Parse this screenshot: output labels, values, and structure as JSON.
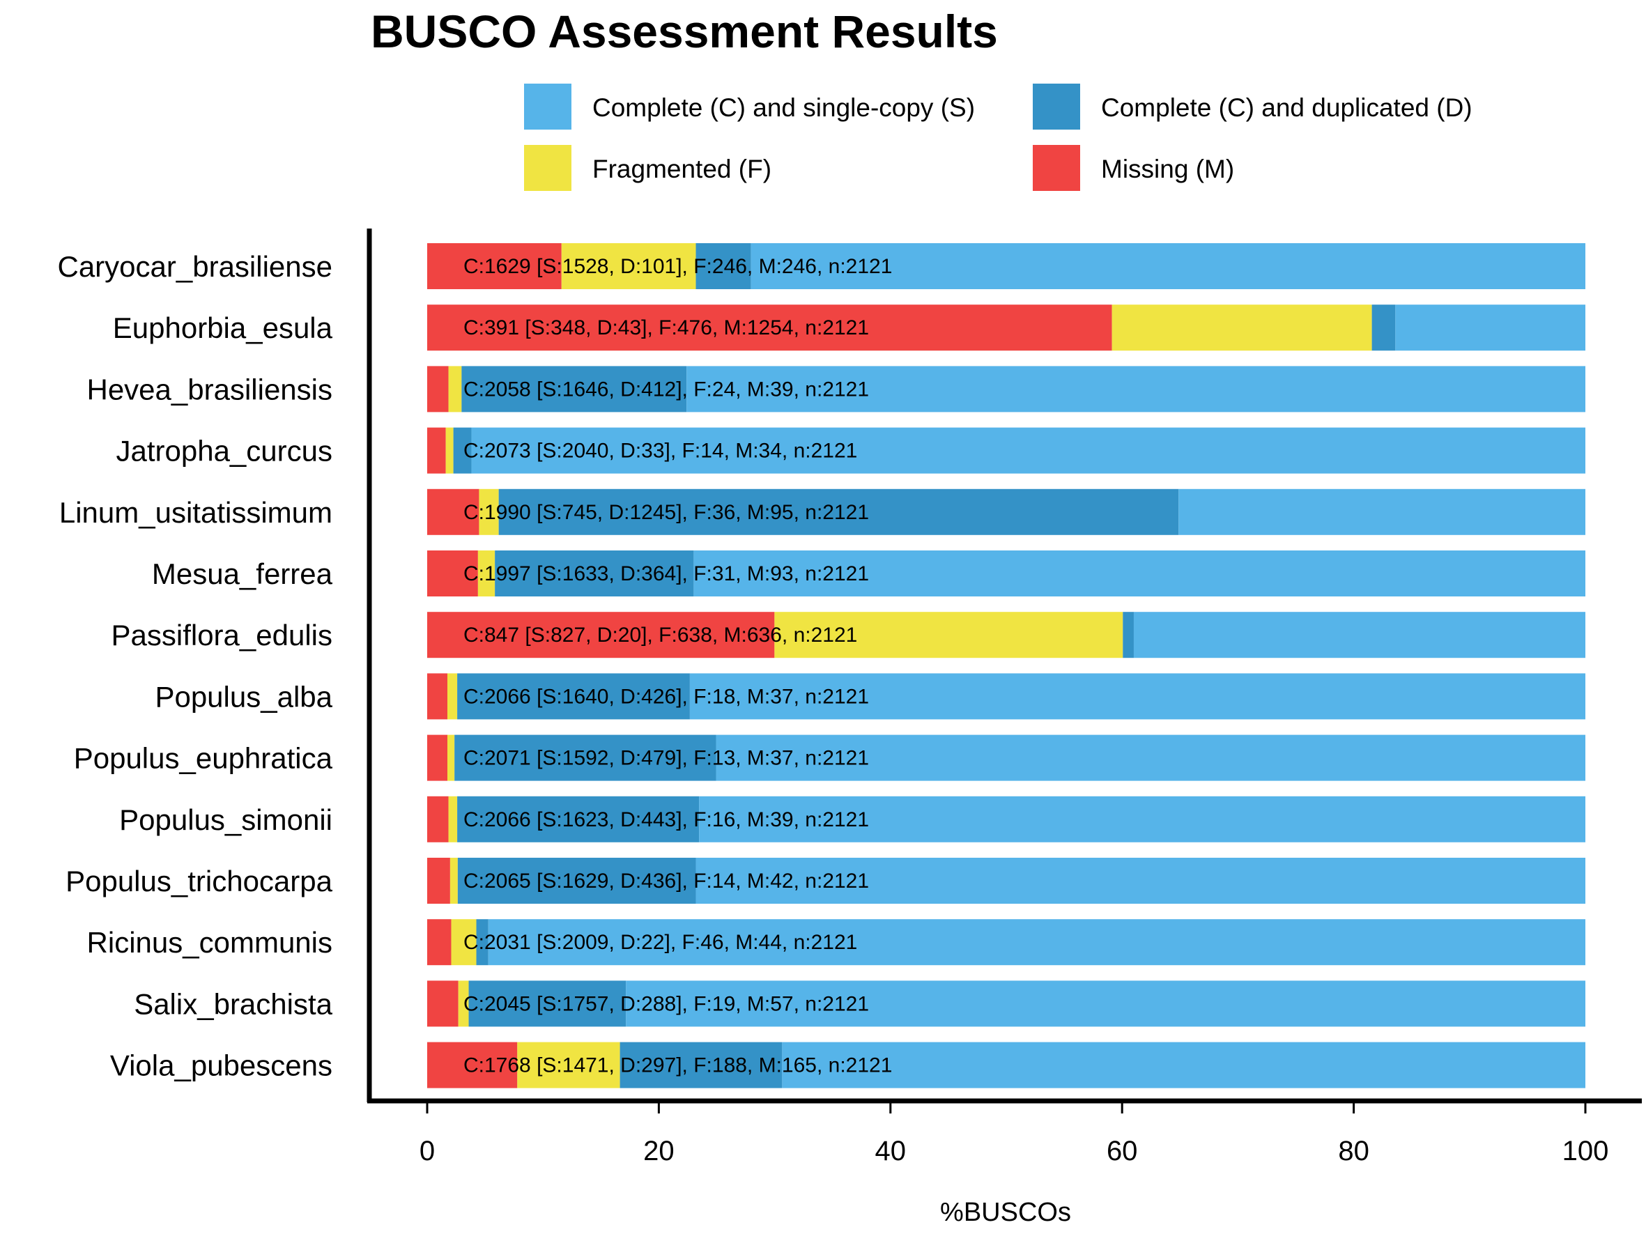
{
  "chart_data": {
    "type": "bar",
    "orientation": "horizontal",
    "stacked": true,
    "title": "BUSCO Assessment Results",
    "xlabel": "%BUSCOs",
    "ylabel": "",
    "xlim": [
      0,
      100
    ],
    "xticks": [
      0,
      20,
      40,
      60,
      80,
      100
    ],
    "legend_position": "top",
    "grid": false,
    "series": [
      {
        "key": "S",
        "name": "Complete (C) and single-copy (S)",
        "color": "#56b4e9"
      },
      {
        "key": "D",
        "name": "Complete (C) and duplicated (D)",
        "color": "#3492c7"
      },
      {
        "key": "F",
        "name": "Fragmented (F)",
        "color": "#f0e442"
      },
      {
        "key": "M",
        "name": "Missing (M)",
        "color": "#f04442"
      }
    ],
    "stack_order": [
      "M",
      "F",
      "D",
      "S"
    ],
    "categories": [
      {
        "name": "Caryocar_brasiliense",
        "S": 1528,
        "D": 101,
        "F": 246,
        "M": 246,
        "n": 2121,
        "label": "C:1629 [S:1528, D:101], F:246, M:246, n:2121"
      },
      {
        "name": "Euphorbia_esula",
        "S": 348,
        "D": 43,
        "F": 476,
        "M": 1254,
        "n": 2121,
        "label": "C:391 [S:348, D:43], F:476, M:1254, n:2121"
      },
      {
        "name": "Hevea_brasiliensis",
        "S": 1646,
        "D": 412,
        "F": 24,
        "M": 39,
        "n": 2121,
        "label": "C:2058 [S:1646, D:412], F:24, M:39, n:2121"
      },
      {
        "name": "Jatropha_curcus",
        "S": 2040,
        "D": 33,
        "F": 14,
        "M": 34,
        "n": 2121,
        "label": "C:2073 [S:2040, D:33], F:14, M:34, n:2121"
      },
      {
        "name": "Linum_usitatissimum",
        "S": 745,
        "D": 1245,
        "F": 36,
        "M": 95,
        "n": 2121,
        "label": "C:1990 [S:745, D:1245], F:36, M:95, n:2121"
      },
      {
        "name": "Mesua_ferrea",
        "S": 1633,
        "D": 364,
        "F": 31,
        "M": 93,
        "n": 2121,
        "label": "C:1997 [S:1633, D:364], F:31, M:93, n:2121"
      },
      {
        "name": "Passiflora_edulis",
        "S": 827,
        "D": 20,
        "F": 638,
        "M": 636,
        "n": 2121,
        "label": "C:847 [S:827, D:20], F:638, M:636, n:2121"
      },
      {
        "name": "Populus_alba",
        "S": 1640,
        "D": 426,
        "F": 18,
        "M": 37,
        "n": 2121,
        "label": "C:2066 [S:1640, D:426], F:18, M:37, n:2121"
      },
      {
        "name": "Populus_euphratica",
        "S": 1592,
        "D": 479,
        "F": 13,
        "M": 37,
        "n": 2121,
        "label": "C:2071 [S:1592, D:479], F:13, M:37, n:2121"
      },
      {
        "name": "Populus_simonii",
        "S": 1623,
        "D": 443,
        "F": 16,
        "M": 39,
        "n": 2121,
        "label": "C:2066 [S:1623, D:443], F:16, M:39, n:2121"
      },
      {
        "name": "Populus_trichocarpa",
        "S": 1629,
        "D": 436,
        "F": 14,
        "M": 42,
        "n": 2121,
        "label": "C:2065 [S:1629, D:436], F:14, M:42, n:2121"
      },
      {
        "name": "Ricinus_communis",
        "S": 2009,
        "D": 22,
        "F": 46,
        "M": 44,
        "n": 2121,
        "label": "C:2031 [S:2009, D:22], F:46, M:44, n:2121"
      },
      {
        "name": "Salix_brachista",
        "S": 1757,
        "D": 288,
        "F": 19,
        "M": 57,
        "n": 2121,
        "label": "C:2045 [S:1757, D:288], F:19, M:57, n:2121"
      },
      {
        "name": "Viola_pubescens",
        "S": 1471,
        "D": 297,
        "F": 188,
        "M": 165,
        "n": 2121,
        "label": "C:1768 [S:1471, D:297], F:188, M:165, n:2121"
      }
    ]
  }
}
